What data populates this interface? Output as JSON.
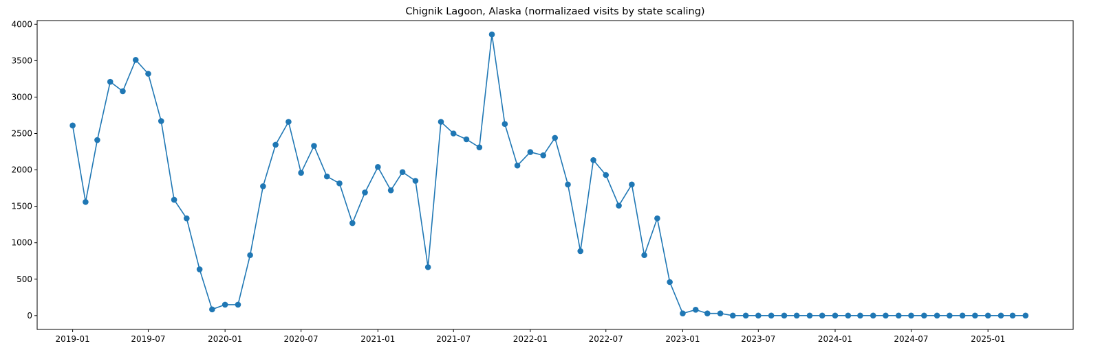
{
  "chart_data": {
    "type": "line",
    "title": "Chignik Lagoon, Alaska (normalizaed visits by state scaling)",
    "xlabel": "",
    "ylabel": "",
    "x_tick_labels": [
      "2019-01",
      "2019-07",
      "2020-01",
      "2020-07",
      "2021-01",
      "2021-07",
      "2022-01",
      "2022-07",
      "2023-01",
      "2023-07",
      "2024-01",
      "2024-07",
      "2025-01"
    ],
    "y_ticks": [
      0,
      500,
      1000,
      1500,
      2000,
      2500,
      3000,
      3500,
      4000
    ],
    "xlim": [
      "2018-10-08",
      "2025-07-24"
    ],
    "ylim": [
      -190,
      4050
    ],
    "grid": false,
    "series_color": "#1f77b4",
    "marker": "circle",
    "series": [
      {
        "x": [
          "2019-01-01",
          "2019-02-01",
          "2019-03-01",
          "2019-04-01",
          "2019-05-01",
          "2019-06-01",
          "2019-07-01",
          "2019-08-01",
          "2019-09-01",
          "2019-10-01",
          "2019-11-01",
          "2019-12-01",
          "2020-01-01",
          "2020-02-01",
          "2020-03-01",
          "2020-04-01",
          "2020-05-01",
          "2020-06-01",
          "2020-07-01",
          "2020-08-01",
          "2020-09-01",
          "2020-10-01",
          "2020-11-01",
          "2020-12-01",
          "2021-01-01",
          "2021-02-01",
          "2021-03-01",
          "2021-04-01",
          "2021-05-01",
          "2021-06-01",
          "2021-07-01",
          "2021-08-01",
          "2021-09-01",
          "2021-10-01",
          "2021-11-01",
          "2021-12-01",
          "2022-01-01",
          "2022-02-01",
          "2022-03-01",
          "2022-04-01",
          "2022-05-01",
          "2022-06-01",
          "2022-07-01",
          "2022-08-01",
          "2022-09-01",
          "2022-10-01",
          "2022-11-01",
          "2022-12-01",
          "2023-01-01",
          "2023-02-01",
          "2023-03-01",
          "2023-04-01",
          "2023-05-01",
          "2023-06-01",
          "2023-07-01",
          "2023-08-01",
          "2023-09-01",
          "2023-10-01",
          "2023-11-01",
          "2023-12-01",
          "2024-01-01",
          "2024-02-01",
          "2024-03-01",
          "2024-04-01",
          "2024-05-01",
          "2024-06-01",
          "2024-07-01",
          "2024-08-01",
          "2024-09-01",
          "2024-10-01",
          "2024-11-01",
          "2024-12-01",
          "2025-01-01",
          "2025-02-01",
          "2025-03-01",
          "2025-04-01"
        ],
        "values": [
          2610,
          1560,
          2410,
          3210,
          3080,
          3510,
          3320,
          2670,
          1590,
          1335,
          635,
          85,
          150,
          150,
          830,
          1775,
          2345,
          2660,
          1960,
          2330,
          1910,
          1815,
          1270,
          1690,
          2040,
          1720,
          1970,
          1850,
          665,
          2660,
          2500,
          2420,
          2310,
          3860,
          2630,
          2060,
          2245,
          2200,
          2440,
          1800,
          885,
          2135,
          1930,
          1510,
          1800,
          830,
          1335,
          460,
          30,
          80,
          30,
          30,
          0,
          0,
          0,
          0,
          0,
          0,
          0,
          0,
          0,
          0,
          0,
          0,
          0,
          0,
          0,
          0,
          0,
          0,
          0,
          0,
          0,
          0,
          0,
          0
        ]
      }
    ]
  }
}
